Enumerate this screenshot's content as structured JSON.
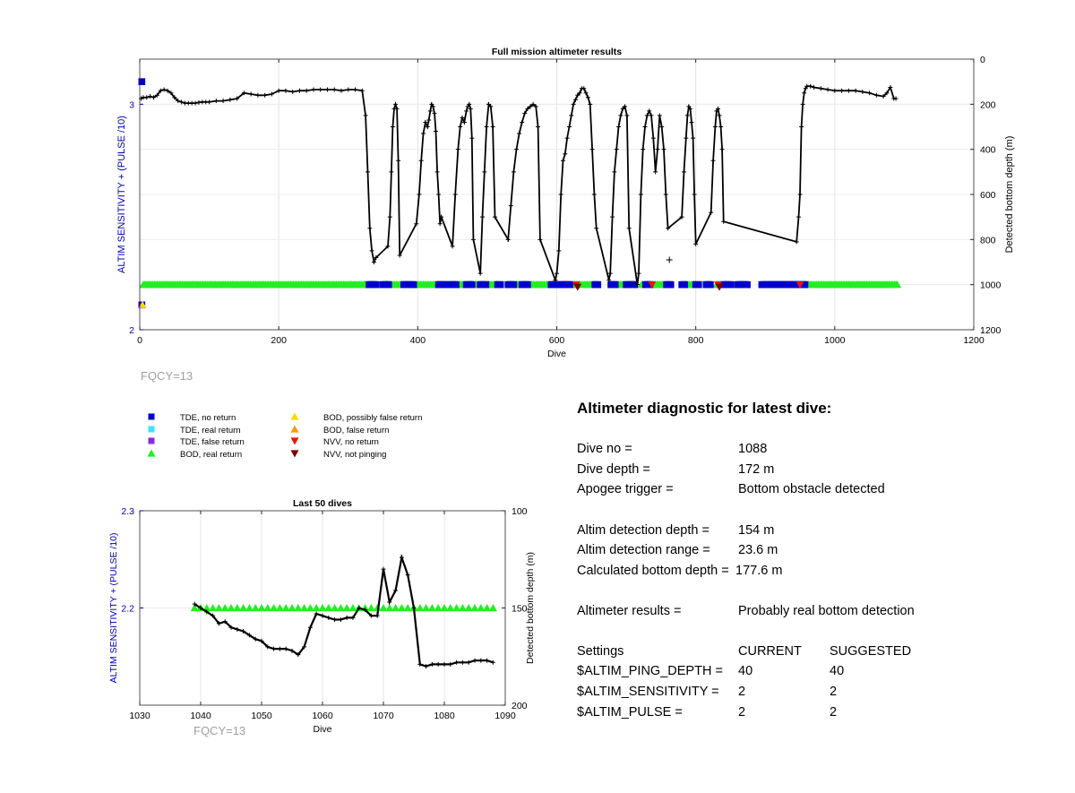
{
  "colors": {
    "tde_no_return": "#0000cc",
    "tde_real_return": "#40e0ff",
    "tde_false_return": "#8a2be2",
    "bod_real_return": "#22ee22",
    "bod_possibly_false": "#ffd700",
    "bod_false_return": "#ff9900",
    "nvv_no_return": "#ee1111",
    "nvv_not_pinging": "#7a0000",
    "left_axis": "#0000aa",
    "depth_line": "#000000",
    "fqcy_text": "#a0a0a0"
  },
  "fqcy_main": "FQCY=13",
  "fqcy_small": "FQCY=13",
  "legend": [
    {
      "label": "TDE, no return",
      "symbol": "square",
      "color_key": "tde_no_return"
    },
    {
      "label": "TDE, real return",
      "symbol": "square",
      "color_key": "tde_real_return"
    },
    {
      "label": "TDE, false return",
      "symbol": "square",
      "color_key": "tde_false_return"
    },
    {
      "label": "BOD, real return",
      "symbol": "triangle-up",
      "color_key": "bod_real_return"
    },
    {
      "label": "BOD, possibly false return",
      "symbol": "triangle-up",
      "color_key": "bod_possibly_false"
    },
    {
      "label": "BOD, false return",
      "symbol": "triangle-up",
      "color_key": "bod_false_return"
    },
    {
      "label": "NVV, no return",
      "symbol": "triangle-down",
      "color_key": "nvv_no_return"
    },
    {
      "label": "NVV, not pinging",
      "symbol": "triangle-down",
      "color_key": "nvv_not_pinging"
    }
  ],
  "diagnostic": {
    "title": "Altimeter diagnostic for latest dive:",
    "rows": [
      {
        "key": "Dive no =",
        "value": "1088"
      },
      {
        "key": "Dive depth =",
        "value": "172 m"
      },
      {
        "key": "Apogee trigger =",
        "value": "Bottom obstacle detected"
      },
      {
        "key": "Altim detection depth =",
        "value": "154 m"
      },
      {
        "key": "Altim detection range =",
        "value": "23.6 m"
      },
      {
        "key": "Calculated bottom depth =",
        "value": "177.6 m"
      },
      {
        "key": "Altimeter results =",
        "value": "Probably real bottom detection"
      }
    ],
    "settings_header": {
      "key": "Settings",
      "current": "CURRENT",
      "suggested": "SUGGESTED"
    },
    "settings": [
      {
        "key": "$ALTIM_PING_DEPTH =",
        "current": "40",
        "suggested": "40"
      },
      {
        "key": "$ALTIM_SENSITIVITY =",
        "current": "2",
        "suggested": "2"
      },
      {
        "key": "$ALTIM_PULSE =",
        "current": "2",
        "suggested": "2"
      }
    ]
  },
  "chart_data": [
    {
      "type": "scatter",
      "title": "Full mission altimeter results",
      "xlabel": "Dive",
      "ylabel_left": "ALTIM SENSITIVITY + (PULSE /10)",
      "ylabel_right": "Detected bottom depth (m)",
      "xlim": [
        0,
        1200
      ],
      "ylim_left": [
        2,
        3.2
      ],
      "ylim_right_reversed": [
        0,
        1200
      ],
      "xticks": [
        "0",
        "200",
        "400",
        "600",
        "800",
        "1000",
        "1200"
      ],
      "yticks_left": [
        "2",
        "3"
      ],
      "yticks_right": [
        "0",
        "200",
        "400",
        "600",
        "800",
        "1000",
        "1200"
      ],
      "grid": true,
      "depth_series": {
        "name": "Detected bottom depth",
        "color_key": "depth_line",
        "x": [
          2,
          5,
          10,
          15,
          20,
          25,
          30,
          35,
          40,
          45,
          50,
          55,
          60,
          65,
          70,
          75,
          80,
          85,
          90,
          95,
          100,
          110,
          120,
          130,
          140,
          150,
          160,
          170,
          180,
          190,
          200,
          210,
          220,
          230,
          240,
          250,
          260,
          270,
          280,
          290,
          300,
          310,
          320,
          325,
          328,
          331,
          334,
          337,
          340,
          357,
          360,
          362,
          364,
          366,
          368,
          370,
          372,
          374,
          398,
          402,
          405,
          408,
          411,
          414,
          416,
          418,
          420,
          422,
          424,
          426,
          428,
          430,
          432,
          434,
          450,
          454,
          458,
          461,
          464,
          467,
          470,
          472,
          474,
          476,
          478,
          480,
          490,
          493,
          496,
          499,
          502,
          505,
          508,
          511,
          530,
          534,
          538,
          542,
          546,
          550,
          554,
          558,
          562,
          566,
          570,
          573,
          576,
          598,
          600,
          603,
          606,
          609,
          612,
          615,
          618,
          621,
          624,
          627,
          630,
          633,
          636,
          639,
          642,
          645,
          648,
          651,
          654,
          657,
          675,
          677,
          680,
          683,
          686,
          689,
          692,
          695,
          698,
          701,
          704,
          716,
          718,
          721,
          724,
          727,
          730,
          733,
          736,
          739,
          742,
          745,
          748,
          751,
          754,
          757,
          760,
          780,
          783,
          786,
          788,
          790,
          792,
          794,
          796,
          798,
          800,
          822,
          825,
          828,
          830,
          832,
          834,
          836,
          838,
          840,
          945,
          948,
          950,
          952,
          954,
          956,
          958,
          960,
          965,
          970,
          980,
          990,
          1000,
          1010,
          1020,
          1030,
          1040,
          1050,
          1060,
          1070,
          1075,
          1080,
          1085,
          1088
        ],
        "y": [
          175,
          170,
          170,
          165,
          170,
          160,
          140,
          135,
          140,
          150,
          170,
          185,
          190,
          195,
          195,
          195,
          195,
          192,
          190,
          190,
          190,
          185,
          185,
          180,
          175,
          150,
          155,
          160,
          160,
          155,
          140,
          140,
          145,
          140,
          140,
          135,
          135,
          135,
          135,
          140,
          135,
          135,
          140,
          250,
          500,
          750,
          850,
          900,
          880,
          830,
          700,
          500,
          300,
          220,
          200,
          220,
          450,
          870,
          730,
          600,
          450,
          330,
          280,
          300,
          270,
          230,
          200,
          210,
          240,
          320,
          500,
          600,
          730,
          700,
          830,
          600,
          400,
          300,
          260,
          280,
          230,
          210,
          200,
          220,
          350,
          800,
          950,
          700,
          500,
          300,
          200,
          210,
          300,
          700,
          800,
          650,
          500,
          400,
          330,
          280,
          240,
          220,
          210,
          200,
          210,
          300,
          800,
          980,
          950,
          850,
          600,
          450,
          420,
          350,
          300,
          250,
          200,
          180,
          160,
          150,
          130,
          130,
          150,
          170,
          200,
          400,
          600,
          750,
          980,
          950,
          700,
          500,
          400,
          300,
          250,
          220,
          210,
          250,
          750,
          1000,
          950,
          600,
          400,
          300,
          250,
          230,
          250,
          350,
          500,
          400,
          250,
          300,
          400,
          600,
          750,
          700,
          500,
          350,
          250,
          210,
          220,
          280,
          350,
          600,
          820,
          680,
          450,
          300,
          230,
          220,
          250,
          300,
          400,
          720,
          810,
          700,
          600,
          300,
          200,
          150,
          130,
          120,
          120,
          125,
          130,
          135,
          140,
          140,
          140,
          140,
          145,
          150,
          160,
          165,
          150,
          125,
          175,
          175
        ]
      },
      "markers": [
        {
          "name": "BOD, real return",
          "color_key": "bod_real_return",
          "symbol": "triangle-up",
          "y": 2.2,
          "x_ranges": [
            [
              5,
              330
            ],
            [
              355,
              380
            ],
            [
              398,
              430
            ],
            [
              455,
              470
            ],
            [
              478,
              490
            ],
            [
              498,
              515
            ],
            [
              538,
              550
            ],
            [
              558,
              590
            ],
            [
              620,
              655
            ],
            [
              685,
              700
            ],
            [
              722,
              758
            ],
            [
              785,
              800
            ],
            [
              830,
              840
            ],
            [
              958,
              1090
            ]
          ]
        },
        {
          "name": "TDE, no return",
          "color_key": "tde_no_return",
          "symbol": "square",
          "y": 2.2,
          "x_ranges": [
            [
              330,
              340
            ],
            [
              350,
              358
            ],
            [
              380,
              395
            ],
            [
              430,
              440
            ],
            [
              445,
              455
            ],
            [
              470,
              478
            ],
            [
              490,
              498
            ],
            [
              515,
              520
            ],
            [
              530,
              538
            ],
            [
              550,
              558
            ],
            [
              592,
              600
            ],
            [
              605,
              620
            ],
            [
              655,
              660
            ],
            [
              678,
              685
            ],
            [
              700,
              712
            ],
            [
              728,
              735
            ],
            [
              758,
              765
            ],
            [
              780,
              785
            ],
            [
              800,
              805
            ],
            [
              815,
              822
            ],
            [
              840,
              850
            ],
            [
              860,
              875
            ],
            [
              895,
              958
            ]
          ]
        },
        {
          "name": "TDE, no return (start)",
          "color_key": "tde_no_return",
          "symbol": "square",
          "points": [
            [
              3,
              3.1
            ],
            [
              3,
              2.11
            ]
          ]
        },
        {
          "name": "BOD, possibly false return",
          "color_key": "bod_possibly_false",
          "symbol": "triangle-up",
          "points": [
            [
              4,
              2.11
            ]
          ]
        },
        {
          "name": "NVV, no return",
          "color_key": "nvv_no_return",
          "symbol": "triangle-down",
          "points": [
            [
              628,
              2.2
            ],
            [
              832,
              2.2
            ],
            [
              950,
              2.2
            ],
            [
              737,
              2.2
            ]
          ]
        },
        {
          "name": "NVV, not pinging",
          "color_key": "nvv_not_pinging",
          "symbol": "triangle-down",
          "points": [
            [
              630,
              2.19
            ],
            [
              834,
              2.19
            ]
          ]
        }
      ],
      "outliers": [
        [
          762,
          890
        ]
      ]
    },
    {
      "type": "line",
      "title": "Last 50 dives",
      "xlabel": "Dive",
      "ylabel_left": "ALTIM SENSITIVITY + (PULSE /10)",
      "ylabel_right": "Detected bottom depth (m)",
      "xlim": [
        1030,
        1090
      ],
      "ylim_left": [
        2.1,
        2.3
      ],
      "ylim_right_reversed": [
        100,
        200
      ],
      "xticks": [
        "1030",
        "1040",
        "1050",
        "1060",
        "1070",
        "1080",
        "1090"
      ],
      "yticks_left": [
        "2.2",
        "2.3"
      ],
      "yticks_right": [
        "100",
        "150",
        "200"
      ],
      "grid": true,
      "depth_series": {
        "name": "Detected bottom depth",
        "color_key": "depth_line",
        "x": [
          1039,
          1040,
          1041,
          1042,
          1043,
          1044,
          1045,
          1046,
          1047,
          1048,
          1049,
          1050,
          1051,
          1052,
          1053,
          1054,
          1055,
          1056,
          1057,
          1058,
          1059,
          1060,
          1061,
          1062,
          1063,
          1064,
          1065,
          1066,
          1067,
          1068,
          1069,
          1070,
          1071,
          1072,
          1073,
          1074,
          1075,
          1076,
          1077,
          1078,
          1079,
          1080,
          1081,
          1082,
          1083,
          1084,
          1085,
          1086,
          1087,
          1088
        ],
        "y": [
          148,
          150,
          152,
          154,
          158,
          157,
          160,
          161,
          162,
          164,
          166,
          167,
          170,
          171,
          171,
          171,
          172,
          174,
          170,
          160,
          153,
          154,
          155,
          156,
          156,
          155,
          155,
          150,
          151,
          154,
          154,
          130,
          147,
          141,
          124,
          133,
          150,
          179,
          180,
          179,
          179,
          179,
          179,
          178,
          178,
          178,
          177,
          177,
          177,
          178
        ]
      },
      "markers": [
        {
          "name": "BOD, real return",
          "color_key": "bod_real_return",
          "symbol": "triangle-up",
          "y": 2.2,
          "x_range": [
            1039,
            1088
          ]
        }
      ]
    }
  ]
}
